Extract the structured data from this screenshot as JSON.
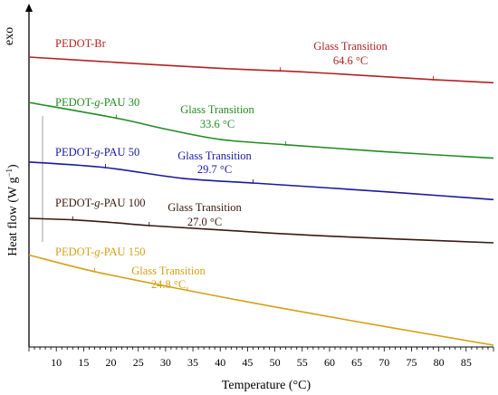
{
  "chart_data": {
    "type": "line",
    "xlabel_main": "Temperature (°C)",
    "ylabel": {
      "pre": "Heat flow (W g",
      "sup": "−1",
      "post": ")"
    },
    "y_direction_label": "exo",
    "x_ticks": [
      10,
      15,
      20,
      25,
      30,
      35,
      40,
      45,
      50,
      55,
      60,
      65,
      70,
      75,
      80,
      85
    ],
    "xlim": [
      5,
      90
    ],
    "series": [
      {
        "name": "PEDOT-Br",
        "name_parts": [
          "PEDOT-Br"
        ],
        "color": "#b22222",
        "x": [
          5,
          20,
          40,
          51,
          60,
          79,
          90
        ],
        "y": [
          0.0,
          -1.6,
          -3.6,
          -4.4,
          -5.2,
          -7.2,
          -8.2
        ],
        "annotation": {
          "line1": "Glass Transition",
          "line2": "64.6 °C"
        },
        "ticks": [
          51,
          79
        ]
      },
      {
        "name": "PEDOT-g-PAU 30",
        "name_parts": [
          "PEDOT-",
          "g",
          "-PAU 30"
        ],
        "color": "#228b22",
        "x": [
          5,
          21,
          30,
          40,
          52,
          70,
          90
        ],
        "y": [
          -14.5,
          -19.5,
          -23.0,
          -26.3,
          -28.0,
          -30.2,
          -32.3
        ],
        "annotation": {
          "line1": "Glass Transition",
          "line2": "33.6 °C"
        },
        "ticks": [
          21,
          52
        ]
      },
      {
        "name": "PEDOT-g-PAU 50",
        "name_parts": [
          "PEDOT-",
          "g",
          "-PAU 50"
        ],
        "color": "#1a1a9c",
        "x": [
          5,
          19,
          33,
          46,
          60,
          75,
          90
        ],
        "y": [
          -33.5,
          -35.3,
          -38.7,
          -40.2,
          -41.8,
          -43.6,
          -45.5
        ],
        "annotation": {
          "line1": "Glass Transition",
          "line2": "29.7 °C"
        },
        "ticks": [
          19,
          46
        ]
      },
      {
        "name": "PEDOT-g-PAU 100",
        "name_parts": [
          "PEDOT-",
          "g",
          "-PAU 100"
        ],
        "color": "#3a1a10",
        "x": [
          5,
          13,
          20,
          27,
          40,
          60,
          90
        ],
        "y": [
          -51.5,
          -52.0,
          -52.8,
          -53.8,
          -55.2,
          -57.2,
          -59.3
        ],
        "annotation": {
          "line1": "Glass Transition",
          "line2": "27.0 °C"
        },
        "ticks": [
          13,
          27
        ]
      },
      {
        "name": "PEDOT-g-PAU 150",
        "name_parts": [
          "PEDOT-",
          "g",
          "-PAU 150"
        ],
        "color": "#d4a017",
        "x": [
          5,
          17,
          34,
          50,
          70,
          90
        ],
        "y": [
          -63.2,
          -68.5,
          -74.5,
          -79.8,
          -86.0,
          -92.0
        ],
        "annotation": {
          "line1": "Glass Transition",
          "line2": "24.8 °C"
        },
        "ticks": [
          17,
          34
        ]
      }
    ]
  }
}
